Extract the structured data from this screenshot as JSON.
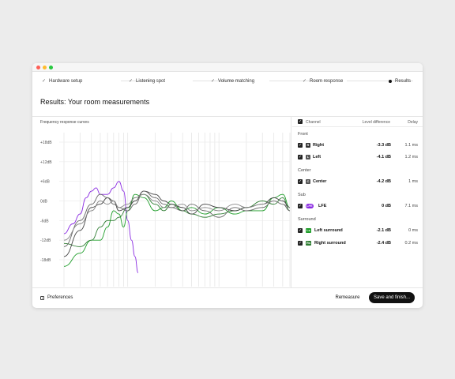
{
  "steps": [
    {
      "label": "Hardware setup",
      "state": "done",
      "icon": "check-icon"
    },
    {
      "label": "Listening spot",
      "state": "done",
      "icon": "check-icon"
    },
    {
      "label": "Volume matching",
      "state": "done",
      "icon": "check-icon"
    },
    {
      "label": "Room response",
      "state": "done",
      "icon": "check-icon"
    },
    {
      "label": "Results",
      "state": "current",
      "icon": "current-dot-icon"
    }
  ],
  "page_title": "Results: Your room measurements",
  "chart": {
    "title": "Frequency response curves",
    "y_ticks": [
      "+18dB",
      "+12dB",
      "+6dB",
      "0dB",
      "-6dB",
      "-12dB",
      "-18dB"
    ]
  },
  "chart_data": {
    "type": "line",
    "title": "Frequency response curves",
    "x_scale": "log",
    "ylim": [
      -20,
      20
    ],
    "y_ticks": [
      18,
      12,
      6,
      0,
      -6,
      -12,
      -18
    ],
    "grid": true,
    "series": [
      {
        "name": "LFE",
        "color": "#8a2be2",
        "x": [
          20,
          25,
          30,
          35,
          40,
          45,
          50,
          60,
          70,
          80,
          90,
          100,
          110,
          120,
          130
        ],
        "y": [
          -10,
          -7,
          -4,
          1,
          3,
          4,
          2,
          2,
          4,
          6,
          3,
          -6,
          -12,
          -17,
          -22
        ]
      },
      {
        "name": "Left surround",
        "color": "#1f9e2a",
        "x": [
          20,
          30,
          40,
          50,
          60,
          70,
          80,
          90,
          100,
          120,
          150,
          200,
          250,
          300,
          400,
          500,
          700,
          1000,
          1500,
          2000,
          3000,
          4000,
          5000,
          6000
        ],
        "y": [
          -20,
          -16,
          -12,
          -12,
          -8,
          -3,
          -4,
          -8,
          -3,
          2,
          1,
          -3,
          -2,
          0,
          -3,
          -2,
          -4,
          -2,
          -4,
          -3,
          -3,
          1,
          2,
          -2
        ]
      },
      {
        "name": "Right surround",
        "color": "#2e7d32",
        "x": [
          20,
          30,
          40,
          50,
          60,
          70,
          80,
          100,
          120,
          150,
          200,
          250,
          300,
          400,
          500,
          700,
          1000,
          1500,
          2000,
          3000,
          4000,
          5000,
          6000
        ],
        "y": [
          -13,
          -14,
          -12,
          -8,
          -6,
          -6,
          -5,
          -2,
          1,
          2,
          -1,
          -3,
          -1,
          -3,
          -4,
          -5,
          -4,
          -3,
          -2,
          0,
          -1,
          1,
          -3
        ]
      },
      {
        "name": "Right",
        "color": "#444444",
        "x": [
          20,
          30,
          40,
          50,
          60,
          70,
          80,
          100,
          120,
          150,
          200,
          250,
          300,
          400,
          500,
          700,
          1000,
          1500,
          2000,
          3000,
          4000,
          5000,
          6000
        ],
        "y": [
          -17,
          -9,
          -2,
          -1,
          1,
          0,
          -3,
          -2,
          0,
          3,
          2,
          0,
          -1,
          -2,
          -4,
          -1,
          -2,
          -3,
          -2,
          -1,
          1,
          0,
          -2
        ]
      },
      {
        "name": "Left",
        "color": "#666666",
        "x": [
          20,
          30,
          40,
          50,
          60,
          70,
          80,
          100,
          120,
          150,
          200,
          250,
          300,
          400,
          500,
          700,
          1000,
          1500,
          2000,
          3000,
          4000,
          5000,
          6000
        ],
        "y": [
          -14,
          -6,
          -1,
          2,
          1,
          -1,
          -2,
          -3,
          -1,
          3,
          1,
          -1,
          -2,
          -3,
          -1,
          -3,
          -5,
          -2,
          -3,
          -2,
          0,
          -1,
          -3
        ]
      },
      {
        "name": "Center",
        "color": "#888888",
        "x": [
          20,
          30,
          40,
          50,
          60,
          70,
          80,
          100,
          120,
          150,
          200,
          250,
          300,
          400,
          500,
          700,
          1000,
          1500,
          2000,
          3000,
          4000,
          5000,
          6000
        ],
        "y": [
          -12,
          -7,
          -3,
          0,
          -1,
          0,
          -2,
          -1,
          1,
          2,
          0,
          -2,
          -2,
          -1,
          -3,
          -2,
          -3,
          -1,
          -2,
          -1,
          0,
          -1,
          -2
        ]
      }
    ]
  },
  "table": {
    "header": {
      "channel": "Channel",
      "level": "Level difference",
      "delay": "Delay"
    },
    "groups": [
      {
        "label": "Front",
        "rows": [
          {
            "badge": "R",
            "badge_color": "#333333",
            "name": "Right",
            "level": "-3.3 dB",
            "delay": "1.1 ms"
          },
          {
            "badge": "L",
            "badge_color": "#555555",
            "name": "Left",
            "level": "-4.1 dB",
            "delay": "1.2 ms"
          }
        ]
      },
      {
        "label": "Center",
        "rows": [
          {
            "badge": "C",
            "badge_color": "#555555",
            "name": "Center",
            "level": "-4.2 dB",
            "delay": "1 ms"
          }
        ]
      },
      {
        "label": "Sub",
        "rows": [
          {
            "badge": "LFE",
            "badge_color": "#8a2be2",
            "name": "LFE",
            "level": "0 dB",
            "delay": "7.1 ms"
          }
        ]
      },
      {
        "label": "Surround",
        "rows": [
          {
            "badge": "Ls",
            "badge_color": "#1f9e2a",
            "name": "Left surround",
            "level": "-2.1 dB",
            "delay": "0 ms"
          },
          {
            "badge": "Rs",
            "badge_color": "#2e7d32",
            "name": "Right surround",
            "level": "-2.4 dB",
            "delay": "0.2 ms"
          }
        ]
      }
    ]
  },
  "footer": {
    "preferences": "Preferences",
    "remeasure": "Remeasure",
    "save": "Save and finish..."
  }
}
